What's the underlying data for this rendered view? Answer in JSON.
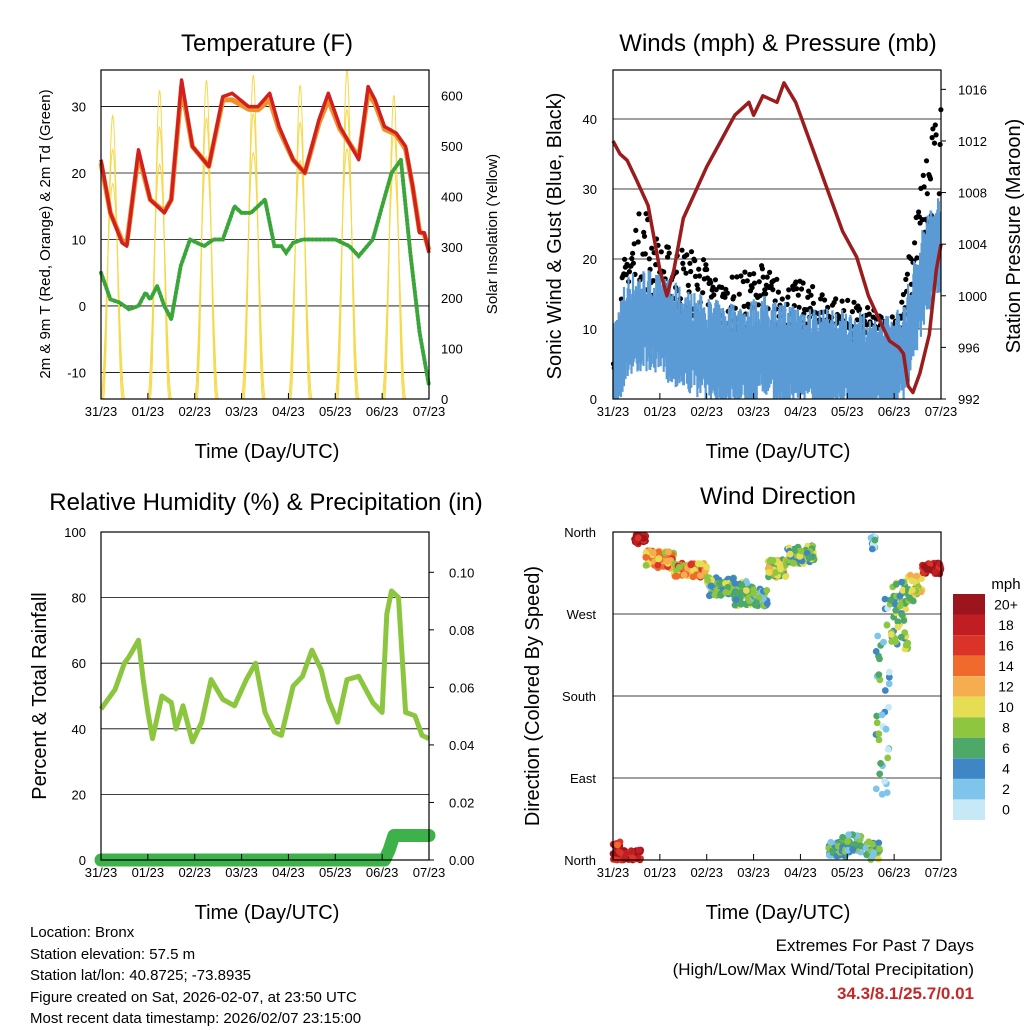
{
  "colors": {
    "temp2m": "#d21f1f",
    "temp9m": "#f0902a",
    "dewpoint": "#3aa63a",
    "solar": "#f5d94a",
    "wind": "#5b9bd5",
    "gust": "#000000",
    "pressure": "#9b1c1c",
    "rh": "#8cc63f",
    "precip": "#3db14a",
    "extremes": "#c62828"
  },
  "chart_data": [
    {
      "id": "temperature",
      "type": "line",
      "title": "Temperature (F)",
      "xlabel": "Time (Day/UTC)",
      "ylabel": "2m & 9m T (Red, Orange) & 2m Td (Green)",
      "y2label": "Solar Insolation (Yellow)",
      "x_ticks": [
        "31/23",
        "01/23",
        "02/23",
        "03/23",
        "04/23",
        "05/23",
        "06/23",
        "07/23"
      ],
      "xlim": [
        0,
        7
      ],
      "ylim": [
        -14,
        35.5
      ],
      "y_ticks": [
        -10,
        0,
        10,
        20,
        30
      ],
      "y2lim": [
        0,
        650
      ],
      "y2_ticks": [
        0,
        100,
        200,
        300,
        400,
        500,
        600
      ],
      "series": [
        {
          "name": "2m T",
          "axis": "left",
          "x": [
            0,
            0.2,
            0.45,
            0.55,
            0.8,
            1.05,
            1.35,
            1.5,
            1.72,
            1.95,
            2.3,
            2.6,
            2.8,
            3.15,
            3.35,
            3.6,
            3.8,
            4.1,
            4.35,
            4.65,
            4.85,
            5.1,
            5.5,
            5.7,
            5.85,
            6.05,
            6.3,
            6.5,
            6.65,
            6.8,
            6.9,
            7.0
          ],
          "y": [
            22,
            14,
            9.5,
            9,
            23.5,
            16,
            14,
            16,
            34,
            24,
            21,
            31.5,
            32,
            30,
            30,
            32,
            27,
            22,
            20,
            28,
            32,
            27,
            22,
            33,
            31,
            27,
            26,
            24,
            18,
            11,
            11,
            8
          ]
        },
        {
          "name": "9m T",
          "axis": "left",
          "x": [
            0,
            0.2,
            0.45,
            0.55,
            0.8,
            1.05,
            1.35,
            1.5,
            1.72,
            1.95,
            2.3,
            2.6,
            2.8,
            3.15,
            3.35,
            3.6,
            3.8,
            4.1,
            4.35,
            4.65,
            4.85,
            5.1,
            5.5,
            5.7,
            5.85,
            6.05,
            6.3,
            6.5,
            6.65,
            6.8,
            6.9,
            7.0
          ],
          "y": [
            21.5,
            14,
            9.8,
            9.4,
            22.8,
            16,
            14.2,
            16,
            33,
            24,
            21,
            31,
            31,
            29.6,
            29.5,
            31,
            26.5,
            22,
            20,
            27.5,
            31,
            26.6,
            22.4,
            32,
            30.4,
            26.6,
            25.8,
            23.6,
            18,
            11.2,
            10.8,
            8.4
          ]
        },
        {
          "name": "2m Td",
          "axis": "left",
          "x": [
            0,
            0.2,
            0.4,
            0.6,
            0.8,
            0.95,
            1.05,
            1.2,
            1.35,
            1.5,
            1.7,
            1.9,
            2.2,
            2.4,
            2.6,
            2.85,
            3.0,
            3.2,
            3.5,
            3.7,
            3.85,
            3.95,
            4.1,
            4.3,
            4.5,
            4.7,
            5.0,
            5.3,
            5.5,
            5.8,
            6.0,
            6.2,
            6.4,
            6.6,
            6.8,
            6.9,
            7.0
          ],
          "y": [
            5,
            1,
            0.5,
            -0.5,
            0,
            2,
            1,
            3,
            0,
            -2,
            6,
            10,
            9,
            10,
            10,
            15,
            14,
            14,
            16,
            9,
            9,
            8,
            9.5,
            10,
            10,
            10,
            10,
            9,
            7.5,
            10,
            15,
            20,
            22,
            8,
            -4,
            -8,
            -12
          ]
        },
        {
          "name": "Solar",
          "axis": "right",
          "peaks_x": [
            0.25,
            1.25,
            2.25,
            3.25,
            4.25,
            5.25,
            6.25
          ],
          "peaks_y": [
            560,
            610,
            630,
            640,
            620,
            650,
            600
          ]
        }
      ]
    },
    {
      "id": "winds",
      "type": "scatter",
      "title": "Winds (mph) & Pressure (mb)",
      "xlabel": "Time (Day/UTC)",
      "ylabel": "Sonic Wind & Gust (Blue, Black)",
      "y2label": "Station Pressure (Maroon)",
      "x_ticks": [
        "31/23",
        "01/23",
        "02/23",
        "03/23",
        "04/23",
        "05/23",
        "06/23",
        "07/23"
      ],
      "xlim": [
        0,
        7
      ],
      "ylim": [
        0,
        47
      ],
      "y_ticks": [
        0,
        10,
        20,
        30,
        40
      ],
      "y2lim": [
        992,
        1017.5
      ],
      "y2_ticks": [
        992,
        996,
        1000,
        1004,
        1008,
        1012,
        1016
      ],
      "series": [
        {
          "name": "Wind mean",
          "axis": "left",
          "x": [
            0,
            0.3,
            0.7,
            1.0,
            1.5,
            1.9,
            2.3,
            2.8,
            3.2,
            3.6,
            4.0,
            4.5,
            5.0,
            5.5,
            5.9,
            6.2,
            6.5,
            6.7,
            6.9,
            7.0
          ],
          "y": [
            3,
            10,
            11,
            10,
            8,
            7,
            6,
            6,
            7,
            6,
            6,
            5,
            5,
            4,
            4,
            6,
            14,
            19,
            21,
            22
          ]
        },
        {
          "name": "Gust mean",
          "axis": "left",
          "x": [
            0,
            0.3,
            0.7,
            1.0,
            1.5,
            1.9,
            2.3,
            2.8,
            3.2,
            3.6,
            4.0,
            4.5,
            5.0,
            5.5,
            5.9,
            6.2,
            6.5,
            6.7,
            6.9,
            7.0
          ],
          "y": [
            5,
            18,
            22,
            17,
            17,
            16,
            13,
            14,
            15,
            13,
            13,
            12,
            11,
            10,
            9,
            12,
            22,
            29,
            31,
            33
          ]
        },
        {
          "name": "Pressure",
          "axis": "right",
          "x": [
            0,
            0.15,
            0.3,
            0.5,
            0.75,
            1.0,
            1.15,
            1.3,
            1.5,
            1.75,
            2.0,
            2.3,
            2.6,
            2.9,
            3.0,
            3.2,
            3.5,
            3.65,
            3.9,
            4.1,
            4.3,
            4.6,
            4.9,
            5.2,
            5.45,
            5.7,
            5.9,
            6.1,
            6.2,
            6.3,
            6.4,
            6.55,
            6.75,
            6.9,
            7.0
          ],
          "y": [
            1012,
            1011,
            1010.5,
            1009,
            1007,
            1002,
            1000,
            1002,
            1006,
            1008,
            1010,
            1012,
            1014,
            1015,
            1014,
            1015.5,
            1015,
            1016.5,
            1015,
            1013,
            1011,
            1008,
            1005,
            1003,
            1000,
            998,
            996.5,
            996,
            995.5,
            993,
            992.5,
            994,
            997,
            1002,
            1004
          ]
        }
      ]
    },
    {
      "id": "humidity",
      "type": "line",
      "title": "Relative Humidity (%) & Precipitation (in)",
      "xlabel": "Time (Day/UTC)",
      "ylabel": "Percent & Total Rainfall",
      "x_ticks": [
        "31/23",
        "01/23",
        "02/23",
        "03/23",
        "04/23",
        "05/23",
        "06/23",
        "07/23"
      ],
      "xlim": [
        0,
        7
      ],
      "ylim": [
        0,
        100
      ],
      "y_ticks": [
        0,
        20,
        40,
        60,
        80,
        100
      ],
      "y2lim": [
        0,
        0.114
      ],
      "y2_ticks": [
        "0.00",
        "0.02",
        "0.04",
        "0.06",
        "0.08",
        "0.10"
      ],
      "series": [
        {
          "name": "RH",
          "axis": "left",
          "x": [
            0,
            0.3,
            0.5,
            0.6,
            0.8,
            0.9,
            1.0,
            1.1,
            1.3,
            1.5,
            1.6,
            1.75,
            1.95,
            2.15,
            2.35,
            2.6,
            2.85,
            3.1,
            3.3,
            3.5,
            3.7,
            3.85,
            4.1,
            4.3,
            4.5,
            4.7,
            4.85,
            5.05,
            5.25,
            5.5,
            5.8,
            6.0,
            6.1,
            6.2,
            6.35,
            6.5,
            6.7,
            6.85,
            7.0
          ],
          "y": [
            46,
            52,
            60,
            62,
            67,
            55,
            45,
            37,
            50,
            48,
            40,
            47,
            36,
            42,
            55,
            49,
            47,
            55,
            60,
            45,
            39,
            38,
            53,
            56,
            64,
            58,
            49,
            42,
            55,
            56,
            48,
            45,
            75,
            82,
            80,
            45,
            44,
            38,
            37
          ]
        },
        {
          "name": "Precip",
          "axis": "right",
          "x": [
            0,
            6.05,
            6.15,
            6.25,
            7.0
          ],
          "y": [
            0.0,
            0.0,
            0.0035,
            0.0085,
            0.0085
          ]
        }
      ]
    },
    {
      "id": "direction",
      "type": "scatter",
      "title": "Wind Direction",
      "xlabel": "Time (Day/UTC)",
      "ylabel": "Direction (Colored By Speed)",
      "x_ticks": [
        "31/23",
        "01/23",
        "02/23",
        "03/23",
        "04/23",
        "05/23",
        "06/23",
        "07/23"
      ],
      "xlim": [
        0,
        7
      ],
      "y_ticks": [
        "North",
        "East",
        "South",
        "West",
        "North"
      ],
      "ylim": [
        0,
        360
      ],
      "legend_title": "mph",
      "legend_labels": [
        "0",
        "2",
        "4",
        "6",
        "8",
        "10",
        "12",
        "14",
        "16",
        "18",
        "20+"
      ],
      "legend_colors": [
        "#c6e8f7",
        "#7fc4ea",
        "#3f86c4",
        "#4ea867",
        "#8ec63f",
        "#e6de52",
        "#f6ad4f",
        "#ef6a2c",
        "#d93427",
        "#c11e24",
        "#9c141c"
      ],
      "clusters": [
        {
          "x0": 0.0,
          "x1": 0.15,
          "dir": 10,
          "spread": 10,
          "speed": 18
        },
        {
          "x0": 0.15,
          "x1": 0.6,
          "dir": 5,
          "spread": 6,
          "speed": 19
        },
        {
          "x0": 0.45,
          "x1": 0.7,
          "dir": 352,
          "spread": 5,
          "speed": 19
        },
        {
          "x0": 0.7,
          "x1": 1.3,
          "dir": 330,
          "spread": 10,
          "speed": 12
        },
        {
          "x0": 1.3,
          "x1": 2.0,
          "dir": 318,
          "spread": 8,
          "speed": 12
        },
        {
          "x0": 2.0,
          "x1": 2.6,
          "dir": 300,
          "spread": 10,
          "speed": 6
        },
        {
          "x0": 2.6,
          "x1": 3.0,
          "dir": 292,
          "spread": 14,
          "speed": 6
        },
        {
          "x0": 3.0,
          "x1": 3.3,
          "dir": 288,
          "spread": 10,
          "speed": 5
        },
        {
          "x0": 3.3,
          "x1": 3.7,
          "dir": 320,
          "spread": 10,
          "speed": 9
        },
        {
          "x0": 3.7,
          "x1": 4.3,
          "dir": 335,
          "spread": 10,
          "speed": 7
        },
        {
          "x0": 4.6,
          "x1": 5.0,
          "dir": 12,
          "spread": 8,
          "speed": 5
        },
        {
          "x0": 4.9,
          "x1": 5.3,
          "dir": 18,
          "spread": 10,
          "speed": 5
        },
        {
          "x0": 5.5,
          "x1": 5.6,
          "dir": 348,
          "spread": 8,
          "speed": 3
        },
        {
          "x0": 5.4,
          "x1": 5.7,
          "dir": 10,
          "spread": 10,
          "speed": 6
        },
        {
          "x0": 5.6,
          "x1": 5.9,
          "dir": 180,
          "spread": 120,
          "speed": 4
        },
        {
          "x0": 5.9,
          "x1": 6.3,
          "dir": 270,
          "spread": 40,
          "speed": 7
        },
        {
          "x0": 6.3,
          "x1": 6.6,
          "dir": 300,
          "spread": 16,
          "speed": 9
        },
        {
          "x0": 6.6,
          "x1": 7.0,
          "dir": 320,
          "spread": 6,
          "speed": 20
        }
      ]
    }
  ],
  "info": {
    "location": "Location: Bronx",
    "elevation": "Station elevation: 57.5 m",
    "latlon": "Station lat/lon: 40.8725; -73.8935",
    "created": "Figure created on Sat, 2026-02-07, at 23:50 UTC",
    "recent": "Most recent data timestamp: 2026/02/07 23:15:00"
  },
  "extremes": {
    "title": "Extremes For Past 7 Days",
    "subtitle": "(High/Low/Max Wind/Total Precipitation)",
    "values": "34.3/8.1/25.7/0.01"
  }
}
